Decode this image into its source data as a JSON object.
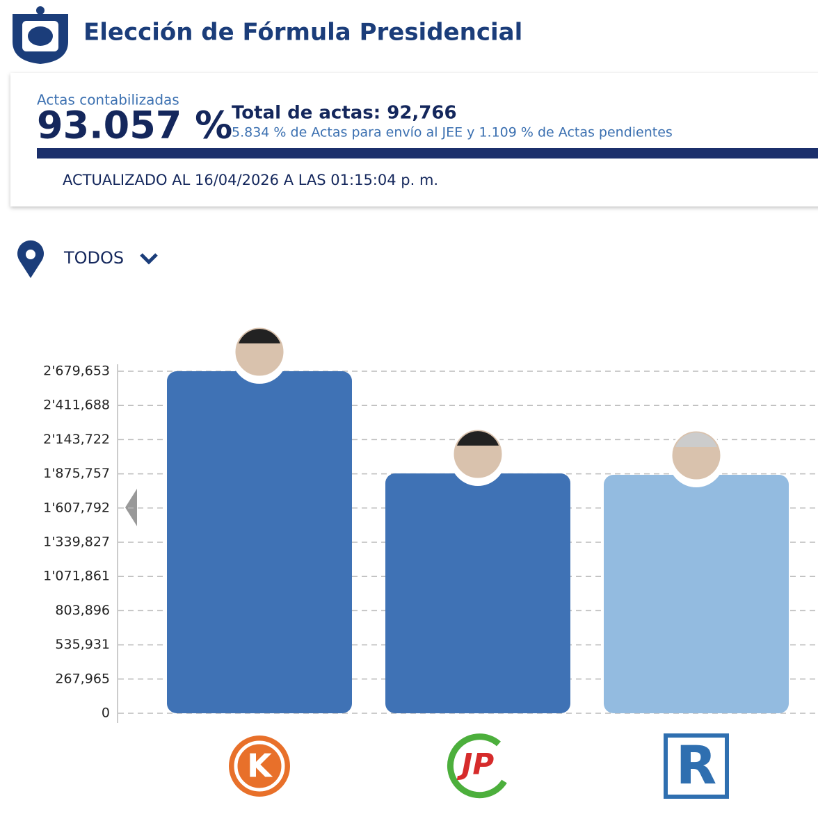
{
  "header": {
    "title": "Elección de Fórmula Presidencial"
  },
  "summary": {
    "label": "Actas contabilizadas",
    "percent": "93.057 %",
    "total": "Total de actas: 92,766",
    "detail": "5.834 % de Actas para envío al JEE y 1.109 % de Actas pendientes",
    "updated": "ACTUALIZADO AL 16/04/2026 A LAS 01:15:04 p. m."
  },
  "filter": {
    "location": "TODOS"
  },
  "chart_data": {
    "type": "bar",
    "categories": [
      "K",
      "JP",
      "R"
    ],
    "values": [
      2679653,
      1879000,
      1868000
    ],
    "colors": [
      "#3f72b5",
      "#3f72b5",
      "#93bbe0"
    ],
    "ylim": [
      0,
      2679653
    ],
    "yticks": [
      0,
      {
        "value": 267965,
        "label": "267,965"
      },
      {
        "value": 535931,
        "label": "535,931"
      },
      {
        "value": 803896,
        "label": "803,896"
      },
      {
        "value": 1071861,
        "label": "1'071,861"
      },
      {
        "value": 1339827,
        "label": "1'339,827"
      },
      {
        "value": 1607792,
        "label": "1'607,792"
      },
      {
        "value": 1875757,
        "label": "1'875,757"
      },
      {
        "value": 2143722,
        "label": "2'143,722"
      },
      {
        "value": 2411688,
        "label": "2'411,688"
      },
      {
        "value": 2679653,
        "label": "2'679,653"
      }
    ],
    "grid": true
  }
}
